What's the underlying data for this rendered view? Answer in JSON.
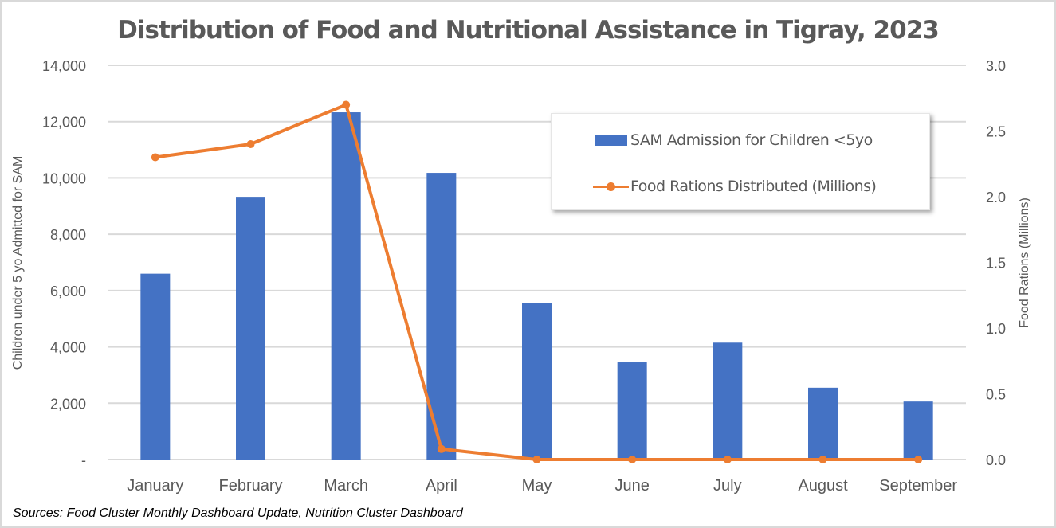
{
  "chart_data": {
    "type": "bar",
    "title": "Distribution of Food and Nutritional Assistance in Tigray, 2023",
    "categories": [
      "January",
      "February",
      "March",
      "April",
      "May",
      "June",
      "July",
      "August",
      "September"
    ],
    "series": [
      {
        "name": "SAM Admission for Children <5yo",
        "type": "bar",
        "axis": "left",
        "color": "#4472c4",
        "values": [
          6600,
          9330,
          12330,
          10180,
          5550,
          3450,
          4150,
          2550,
          2060
        ]
      },
      {
        "name": "Food Rations Distributed (Millions)",
        "type": "line",
        "axis": "right",
        "color": "#ed7d31",
        "values": [
          2.3,
          2.4,
          2.7,
          0.08,
          0.0,
          0.0,
          0.0,
          0.0,
          0.0
        ]
      }
    ],
    "y_left": {
      "label": "Children under 5 yo Admitted for SAM",
      "range": [
        0,
        14000
      ],
      "ticks": [
        0,
        2000,
        4000,
        6000,
        8000,
        10000,
        12000,
        14000
      ],
      "tick_labels": [
        "-",
        "2,000",
        "4,000",
        "6,000",
        "8,000",
        "10,000",
        "12,000",
        "14,000"
      ]
    },
    "y_right": {
      "label": "Food Rations (Millions)",
      "range": [
        0,
        3.0
      ],
      "ticks": [
        0,
        0.5,
        1.0,
        1.5,
        2.0,
        2.5,
        3.0
      ],
      "tick_labels": [
        "0.0",
        "0.5",
        "1.0",
        "1.5",
        "2.0",
        "2.5",
        "3.0"
      ]
    },
    "xlabel": "",
    "grid": true,
    "legend_position": "top-right"
  },
  "legend": {
    "bar_label": "SAM Admission for Children <5yo",
    "line_label": "Food Rations Distributed (Millions)"
  },
  "source_note": "Sources: Food Cluster Monthly Dashboard Update, Nutrition Cluster Dashboard"
}
